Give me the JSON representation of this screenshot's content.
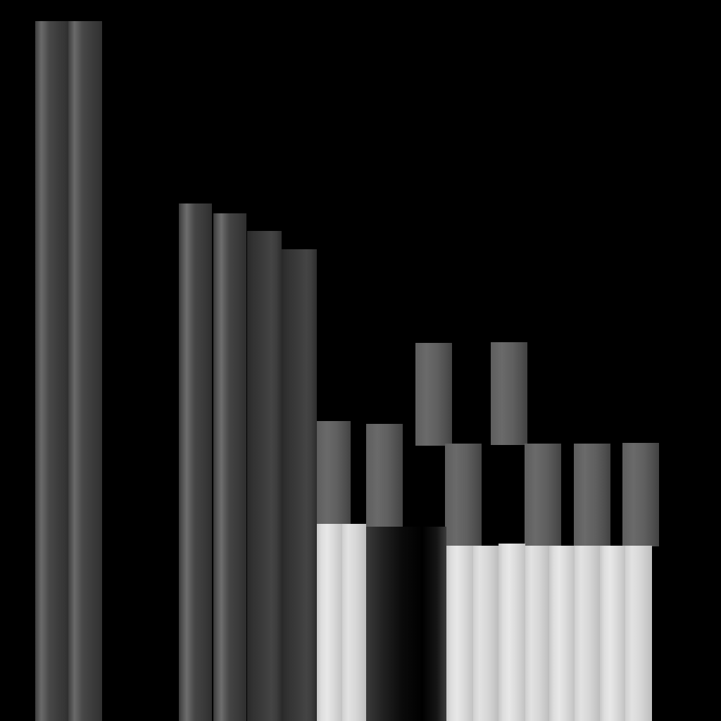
{
  "scene": {
    "background": "#000000",
    "bar_tones": {
      "dark": "#4a4a4a",
      "mid": "#606060",
      "light": "#dcdcdc"
    }
  }
}
